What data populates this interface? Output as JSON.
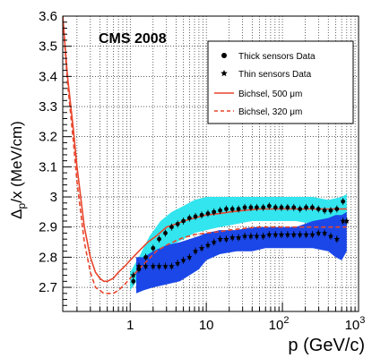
{
  "chart_data": {
    "type": "line",
    "title": "CMS 2008",
    "xlabel": "p (GeV/c)",
    "ylabel_parts": [
      "Δ",
      "p",
      "/x (MeV/cm)"
    ],
    "x_scale": "log",
    "xlim": [
      0.13,
      1000
    ],
    "ylim": [
      2.62,
      3.6
    ],
    "x_ticks": [
      {
        "v": 1,
        "label": "1"
      },
      {
        "v": 10,
        "label": "10"
      },
      {
        "v": 100,
        "base": "10",
        "exp": "2"
      },
      {
        "v": 1000,
        "base": "10",
        "exp": "3"
      }
    ],
    "y_ticks": [
      {
        "v": 2.7,
        "label": "2.7"
      },
      {
        "v": 2.8,
        "label": "2.8"
      },
      {
        "v": 2.9,
        "label": "2.9"
      },
      {
        "v": 3.0,
        "label": "3"
      },
      {
        "v": 3.1,
        "label": "3.1"
      },
      {
        "v": 3.2,
        "label": "3.2"
      },
      {
        "v": 3.3,
        "label": "3.3"
      },
      {
        "v": 3.4,
        "label": "3.4"
      },
      {
        "v": 3.5,
        "label": "3.5"
      },
      {
        "v": 3.6,
        "label": "3.6"
      }
    ],
    "grid": true,
    "legend_position": "top-right",
    "legend": [
      {
        "label": "Thick sensors Data",
        "marker": "circle"
      },
      {
        "label": "Thin sensors Data",
        "marker": "star"
      },
      {
        "label": "Bichsel, 500 μm",
        "line": "solid"
      },
      {
        "label": "Bichsel, 320 μm",
        "line": "dashed"
      }
    ],
    "colors": {
      "thick_band": "#33e5ee",
      "thin_band": "#1b47e8",
      "bichsel": "#e8452c",
      "points": "#000000"
    },
    "thick_band": {
      "x": [
        1.0,
        1.3,
        1.8,
        2.5,
        3.5,
        5,
        7,
        10,
        15,
        25,
        40,
        60,
        100,
        150,
        250,
        400,
        600,
        700
      ],
      "upper": [
        2.75,
        2.8,
        2.87,
        2.92,
        2.95,
        2.97,
        2.99,
        3.0,
        3.0,
        3.0,
        3.0,
        3.0,
        3.0,
        3.0,
        3.0,
        2.99,
        3.0,
        3.01
      ],
      "lower": [
        2.69,
        2.73,
        2.77,
        2.81,
        2.84,
        2.86,
        2.88,
        2.89,
        2.9,
        2.91,
        2.92,
        2.92,
        2.92,
        2.92,
        2.91,
        2.9,
        2.92,
        2.93
      ]
    },
    "thin_band": {
      "x": [
        1.2,
        1.5,
        2.0,
        3.0,
        4.5,
        6,
        8,
        10,
        15,
        25,
        40,
        60,
        100,
        150,
        250,
        400,
        500,
        600,
        700
      ],
      "upper": [
        2.8,
        2.8,
        2.82,
        2.84,
        2.85,
        2.86,
        2.87,
        2.88,
        2.89,
        2.89,
        2.9,
        2.9,
        2.9,
        2.9,
        2.92,
        2.93,
        2.94,
        2.94,
        2.95
      ],
      "lower": [
        2.68,
        2.69,
        2.7,
        2.71,
        2.72,
        2.74,
        2.76,
        2.79,
        2.81,
        2.82,
        2.82,
        2.83,
        2.83,
        2.83,
        2.83,
        2.82,
        2.8,
        2.79,
        2.82
      ]
    },
    "series": [
      {
        "name": "Bichsel, 500 μm",
        "style": "solid",
        "x": [
          0.13,
          0.15,
          0.18,
          0.2,
          0.25,
          0.3,
          0.35,
          0.4,
          0.45,
          0.5,
          0.6,
          0.7,
          0.85,
          1.0,
          1.3,
          1.7,
          2.2,
          3,
          4,
          5,
          7,
          10,
          15,
          20,
          30,
          50,
          70,
          100,
          200,
          300,
          500,
          700
        ],
        "y": [
          3.6,
          3.4,
          3.22,
          3.1,
          2.9,
          2.8,
          2.75,
          2.73,
          2.72,
          2.72,
          2.73,
          2.75,
          2.77,
          2.79,
          2.82,
          2.85,
          2.87,
          2.9,
          2.91,
          2.92,
          2.93,
          2.94,
          2.945,
          2.95,
          2.955,
          2.96,
          2.96,
          2.96,
          2.96,
          2.96,
          2.96,
          2.96
        ]
      },
      {
        "name": "Bichsel, 320 μm",
        "style": "dashed",
        "x": [
          0.13,
          0.15,
          0.18,
          0.2,
          0.25,
          0.3,
          0.35,
          0.4,
          0.45,
          0.5,
          0.6,
          0.7,
          0.85,
          1.0,
          1.3,
          1.7,
          2.2,
          3,
          4,
          5,
          7,
          10,
          15,
          20,
          30,
          50,
          70,
          100,
          200,
          300,
          500,
          700
        ],
        "y": [
          3.6,
          3.38,
          3.18,
          3.05,
          2.85,
          2.75,
          2.7,
          2.69,
          2.68,
          2.68,
          2.68,
          2.69,
          2.71,
          2.73,
          2.76,
          2.79,
          2.82,
          2.84,
          2.855,
          2.865,
          2.875,
          2.88,
          2.885,
          2.89,
          2.895,
          2.9,
          2.9,
          2.9,
          2.9,
          2.9,
          2.9,
          2.9
        ]
      },
      {
        "name": "Thick sensors Data",
        "marker": "circle",
        "x": [
          1.1,
          1.3,
          1.6,
          2.0,
          2.4,
          2.9,
          3.5,
          4.2,
          5.0,
          6.0,
          7.2,
          8.7,
          10.5,
          12.6,
          15.2,
          18.3,
          22,
          26.5,
          32,
          38.5,
          46,
          56,
          67,
          81,
          97,
          117,
          141,
          170,
          205,
          247,
          297,
          358,
          431,
          519,
          625
        ],
        "y": [
          2.72,
          2.76,
          2.8,
          2.83,
          2.86,
          2.88,
          2.9,
          2.91,
          2.92,
          2.93,
          2.935,
          2.94,
          2.945,
          2.95,
          2.955,
          2.96,
          2.96,
          2.96,
          2.965,
          2.965,
          2.965,
          2.965,
          2.97,
          2.965,
          2.965,
          2.965,
          2.965,
          2.96,
          2.965,
          2.965,
          2.96,
          2.955,
          2.955,
          2.96,
          2.985
        ]
      },
      {
        "name": "Thin sensors Data",
        "marker": "star",
        "x": [
          1.1,
          1.3,
          1.6,
          2.0,
          2.4,
          2.9,
          3.5,
          4.2,
          5.0,
          6.0,
          7.2,
          8.7,
          10.5,
          12.6,
          15.2,
          18.3,
          22,
          26.5,
          32,
          38.5,
          46,
          56,
          67,
          81,
          97,
          117,
          141,
          170,
          205,
          247,
          297,
          358,
          431,
          519,
          625,
          700
        ],
        "y": [
          2.74,
          2.77,
          2.77,
          2.77,
          2.77,
          2.77,
          2.77,
          2.78,
          2.79,
          2.8,
          2.82,
          2.83,
          2.84,
          2.85,
          2.86,
          2.86,
          2.865,
          2.865,
          2.87,
          2.87,
          2.87,
          2.87,
          2.875,
          2.875,
          2.875,
          2.875,
          2.875,
          2.875,
          2.875,
          2.875,
          2.88,
          2.88,
          2.87,
          2.86,
          2.92,
          2.92
        ]
      }
    ]
  }
}
